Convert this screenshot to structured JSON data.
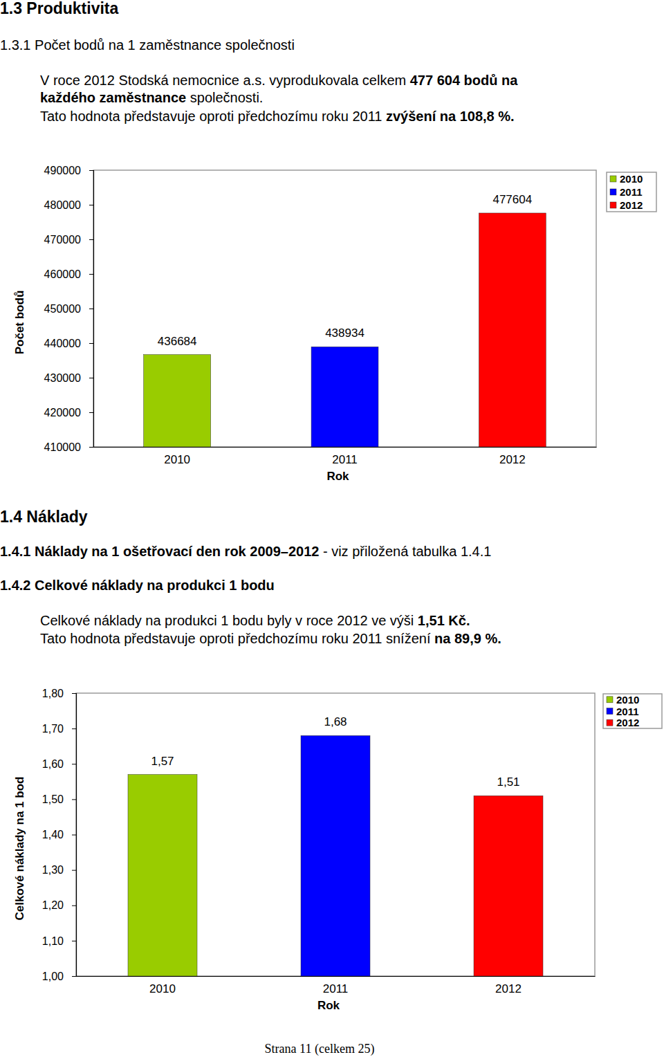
{
  "page": {
    "lines": [
      {
        "kind": "heading1",
        "runs": [
          {
            "text": "1.3  Produktivita",
            "bold": true
          }
        ]
      },
      {
        "kind": "heading2",
        "runs": [
          {
            "text": "1.3.1 Počet bodů na 1 zaměstnance společnosti",
            "bold": false
          }
        ]
      },
      {
        "kind": "paragraph",
        "runs": [
          {
            "text": "V roce 2012 Stodská nemocnice a.s. vyprodukovala celkem ",
            "bold": false
          },
          {
            "text": "477 604 bodů na",
            "bold": true
          }
        ]
      },
      {
        "kind": "paragraph",
        "runs": [
          {
            "text": "každého zaměstnance",
            "bold": true
          },
          {
            "text": " společnosti.",
            "bold": false
          }
        ]
      },
      {
        "kind": "paragraph",
        "runs": [
          {
            "text": "Tato hodnota představuje oproti předchozímu roku 2011 ",
            "bold": false
          },
          {
            "text": "zvýšení na 108,8 %.",
            "bold": true
          }
        ]
      },
      {
        "kind": "heading1",
        "runs": [
          {
            "text": "1.4  Náklady",
            "bold": true
          }
        ]
      },
      {
        "kind": "heading2",
        "runs": [
          {
            "text": "1.4.1 Náklady na 1 ošetřovací den rok 2009–2012",
            "bold": true
          },
          {
            "text": " - viz přiložená tabulka 1.4.1",
            "bold": false
          }
        ]
      },
      {
        "kind": "heading2",
        "runs": [
          {
            "text": "1.4.2 Celkové náklady na produkci 1 bodu",
            "bold": true
          }
        ]
      },
      {
        "kind": "paragraph",
        "runs": [
          {
            "text": "Celkové náklady na produkci 1 bodu byly v roce 2012 ve výši ",
            "bold": false
          },
          {
            "text": "1,51 Kč.",
            "bold": true
          }
        ]
      },
      {
        "kind": "paragraph",
        "runs": [
          {
            "text": "Tato hodnota představuje oproti předchozímu roku 2011 snížení ",
            "bold": false
          },
          {
            "text": "na 89,9 %.",
            "bold": true
          }
        ]
      }
    ],
    "footer": "Strana 11 (celkem 25)"
  },
  "chart_data": [
    {
      "type": "bar",
      "categories": [
        "2010",
        "2011",
        "2012"
      ],
      "values": [
        436684,
        438934,
        477604
      ],
      "colors": [
        "#99cc00",
        "#0000ff",
        "#ff0000"
      ],
      "x_label": "Rok",
      "y_label": "Počet bodů",
      "ylim": [
        410000,
        490000
      ],
      "yticks": [
        410000,
        420000,
        430000,
        440000,
        450000,
        460000,
        470000,
        480000,
        490000
      ],
      "grid": false,
      "data_labels": true,
      "legend": "right"
    },
    {
      "type": "bar",
      "categories": [
        "2010",
        "2011",
        "2012"
      ],
      "values": [
        1.57,
        1.68,
        1.51
      ],
      "value_labels": [
        "1,57",
        "1,68",
        "1,51"
      ],
      "colors": [
        "#99cc00",
        "#0000ff",
        "#ff0000"
      ],
      "x_label": "Rok",
      "y_label": "Celkové náklady na 1 bod",
      "ylim": [
        1.0,
        1.8
      ],
      "yticks": [
        {
          "value": 1.0,
          "label": "1,00"
        },
        {
          "value": 1.1,
          "label": "1,10"
        },
        {
          "value": 1.2,
          "label": "1,20"
        },
        {
          "value": 1.3,
          "label": "1,30"
        },
        {
          "value": 1.4,
          "label": "1,40"
        },
        {
          "value": 1.5,
          "label": "1,50"
        },
        {
          "value": 1.6,
          "label": "1,60"
        },
        {
          "value": 1.7,
          "label": "1,70"
        },
        {
          "value": 1.8,
          "label": "1,80"
        }
      ],
      "grid": false,
      "data_labels": true,
      "legend": "right"
    }
  ]
}
